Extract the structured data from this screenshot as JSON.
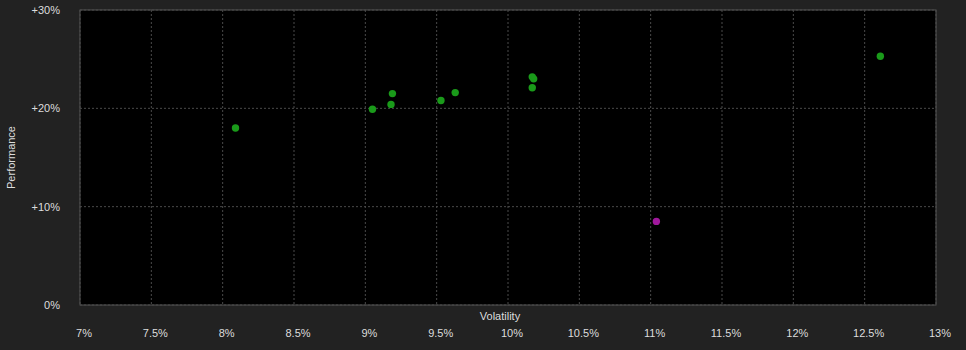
{
  "chart_data": {
    "type": "scatter",
    "x_label": "Volatility",
    "y_label": "Performance",
    "x": [
      8.09,
      9.05,
      9.18,
      9.19,
      9.53,
      9.63,
      10.17,
      10.17,
      10.18,
      12.61,
      11.04
    ],
    "values": [
      18.0,
      19.9,
      20.4,
      21.5,
      20.8,
      21.6,
      22.1,
      23.2,
      23.0,
      25.3,
      8.5
    ],
    "colors": [
      "#1a9a1a",
      "#1a9a1a",
      "#1a9a1a",
      "#1a9a1a",
      "#1a9a1a",
      "#1a9a1a",
      "#1a9a1a",
      "#1a9a1a",
      "#1a9a1a",
      "#1a9a1a",
      "#a0189c"
    ],
    "marker": "circle",
    "xlim": [
      7,
      13
    ],
    "xticks": [
      {
        "value": 7,
        "label": "7%"
      },
      {
        "value": 7.5,
        "label": "7.5%"
      },
      {
        "value": 8,
        "label": "8%"
      },
      {
        "value": 8.5,
        "label": "8.5%"
      },
      {
        "value": 9,
        "label": "9%"
      },
      {
        "value": 9.5,
        "label": "9.5%"
      },
      {
        "value": 10,
        "label": "10%"
      },
      {
        "value": 10.5,
        "label": "10.5%"
      },
      {
        "value": 11,
        "label": "11%"
      },
      {
        "value": 11.5,
        "label": "11.5%"
      },
      {
        "value": 12,
        "label": "12%"
      },
      {
        "value": 12.5,
        "label": "12.5%"
      },
      {
        "value": 13,
        "label": "13%"
      }
    ],
    "ylim": [
      0,
      30
    ],
    "yticks": [
      {
        "value": 0,
        "label": "0%"
      },
      {
        "value": 10,
        "label": "+10%"
      },
      {
        "value": 20,
        "label": "+20%"
      },
      {
        "value": 30,
        "label": "+30%"
      }
    ],
    "grid": true
  }
}
